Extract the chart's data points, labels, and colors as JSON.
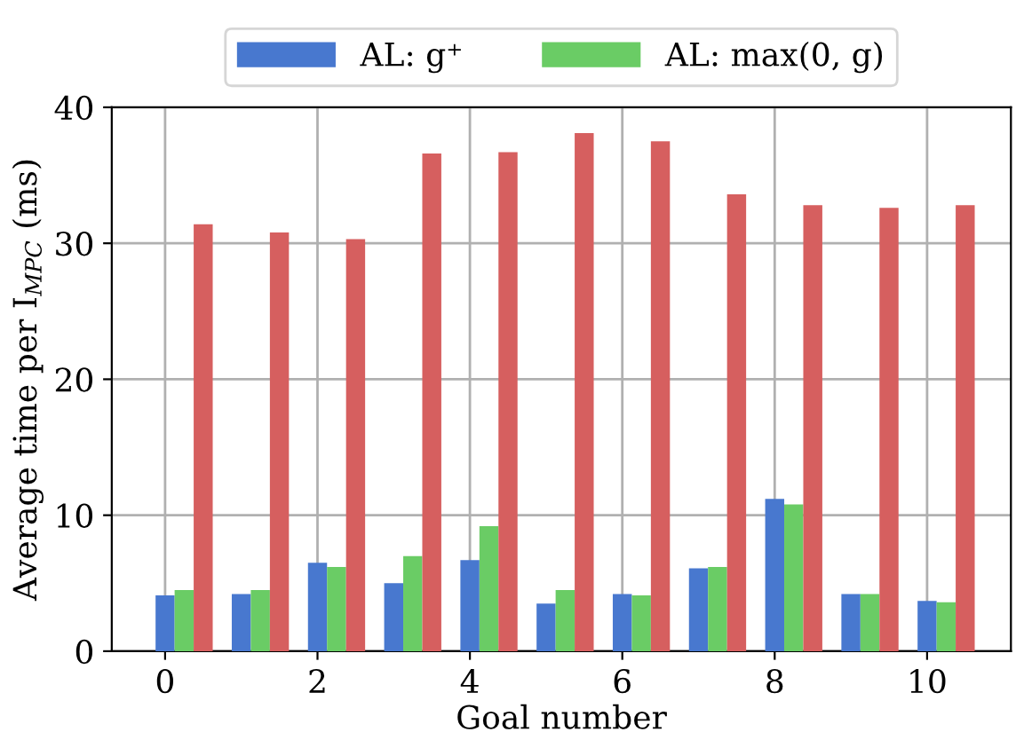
{
  "chart_data": {
    "type": "bar",
    "xlabel": "Goal number",
    "ylabel": "Average time per I$_{MPC}$ (ms)",
    "x": [
      0,
      1,
      2,
      3,
      4,
      5,
      6,
      7,
      8,
      9,
      10
    ],
    "series": [
      {
        "name": "AL: g⁺",
        "color": "#4878cf",
        "values": [
          4.1,
          4.2,
          6.5,
          5.0,
          6.7,
          3.5,
          4.2,
          6.1,
          11.2,
          4.2,
          3.7
        ]
      },
      {
        "name": "AL: max(0, g)",
        "color": "#6acc65",
        "values": [
          4.5,
          4.5,
          6.2,
          7.0,
          9.2,
          4.5,
          4.1,
          6.2,
          10.8,
          4.2,
          3.6
        ]
      },
      {
        "color": "#d65f5f",
        "values": [
          31.4,
          30.8,
          30.3,
          36.6,
          36.7,
          38.1,
          37.5,
          33.6,
          32.8,
          32.6,
          32.8
        ]
      }
    ],
    "xlim": [
      -0.7,
      11.1
    ],
    "xticks": [
      0,
      2,
      4,
      6,
      8,
      10
    ],
    "ylim": [
      0,
      40
    ],
    "yticks": [
      0,
      10,
      20,
      30,
      40
    ],
    "grid": true,
    "legend": "top"
  }
}
